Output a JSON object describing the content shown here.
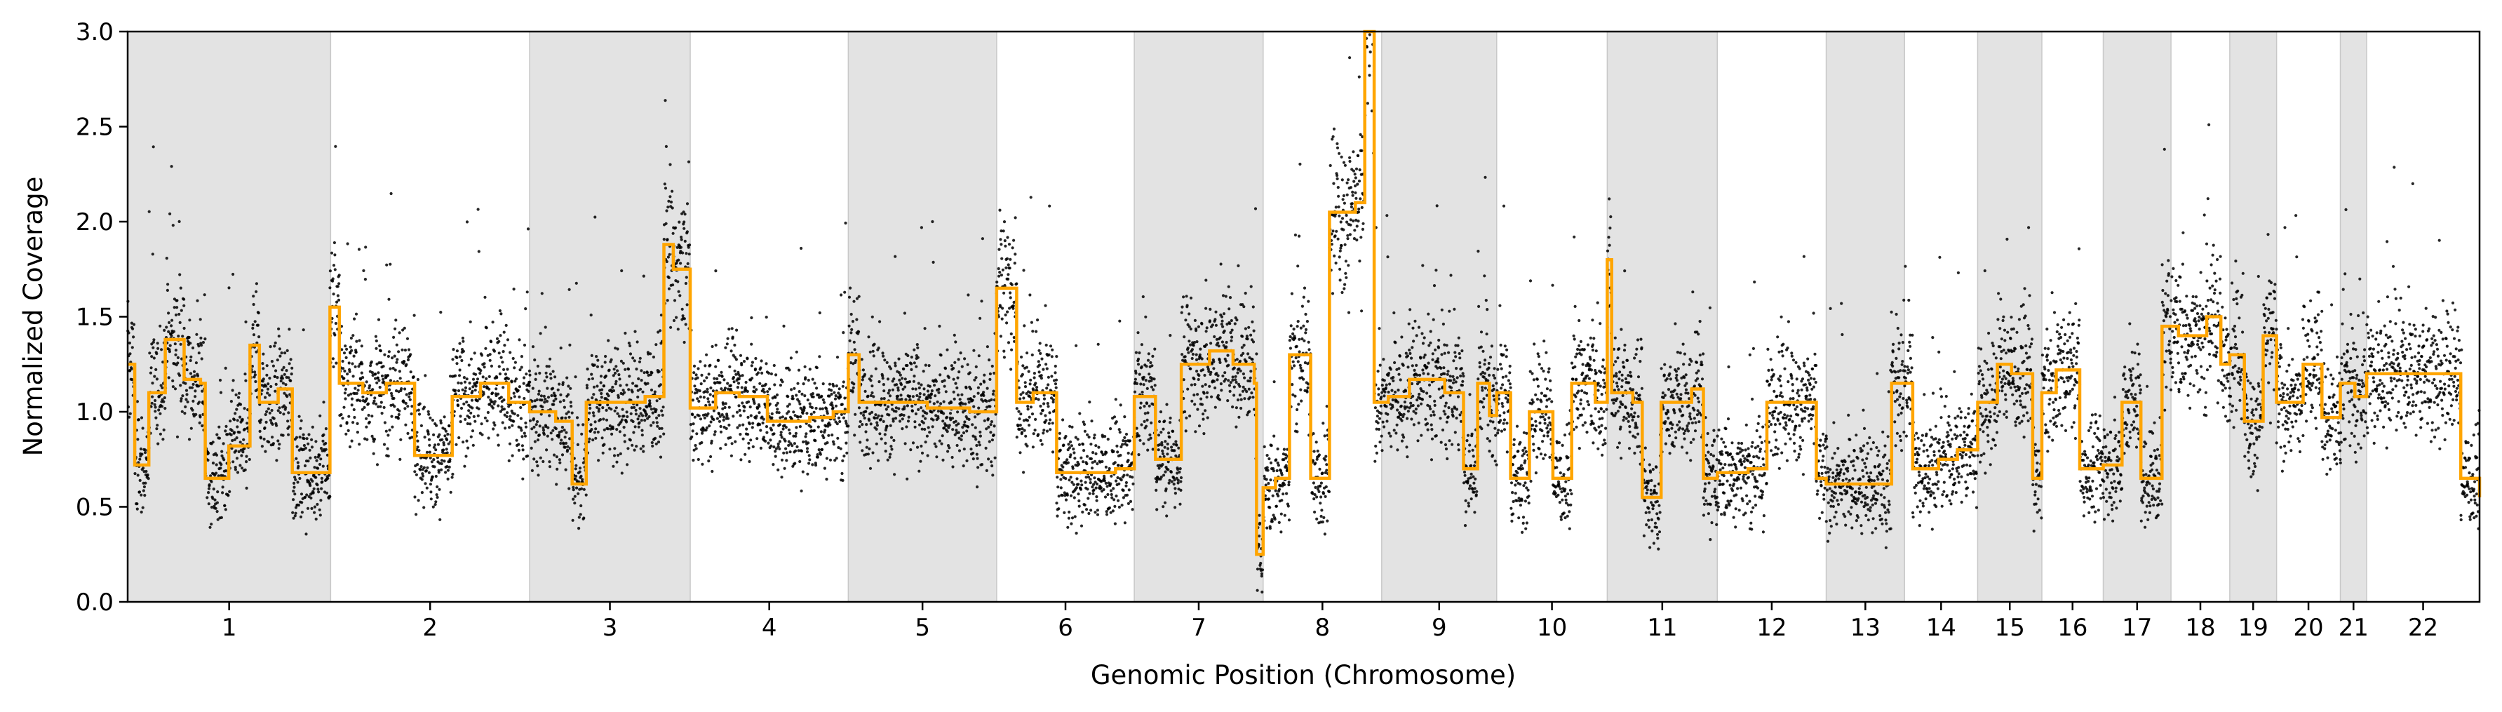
{
  "chart_data": {
    "type": "scatter",
    "title": "",
    "xlabel": "Genomic Position (Chromosome)",
    "ylabel": "Normalized Coverage",
    "ylim": [
      0,
      3.0
    ],
    "yticks": [
      "0.0",
      "0.5",
      "1.0",
      "1.5",
      "2.0",
      "2.5",
      "3.0"
    ],
    "grid": false,
    "legend": "none",
    "colors": {
      "points": "#000000",
      "segments": "#ffa500",
      "shade": "#e3e3e3",
      "shade_edge": "#c8c8c8"
    },
    "chromosomes": [
      {
        "label": "1",
        "start": 0.0,
        "end": 0.0863
      },
      {
        "label": "2",
        "start": 0.0863,
        "end": 0.1709
      },
      {
        "label": "3",
        "start": 0.1709,
        "end": 0.2392
      },
      {
        "label": "4",
        "start": 0.2392,
        "end": 0.3064
      },
      {
        "label": "5",
        "start": 0.3064,
        "end": 0.3695
      },
      {
        "label": "6",
        "start": 0.3695,
        "end": 0.428
      },
      {
        "label": "7",
        "start": 0.428,
        "end": 0.4828
      },
      {
        "label": "8",
        "start": 0.4828,
        "end": 0.5332
      },
      {
        "label": "9",
        "start": 0.5332,
        "end": 0.5821
      },
      {
        "label": "10",
        "start": 0.5821,
        "end": 0.6291
      },
      {
        "label": "11",
        "start": 0.6291,
        "end": 0.6759
      },
      {
        "label": "12",
        "start": 0.6759,
        "end": 0.7222
      },
      {
        "label": "13",
        "start": 0.7222,
        "end": 0.7555
      },
      {
        "label": "14",
        "start": 0.7555,
        "end": 0.7866
      },
      {
        "label": "15",
        "start": 0.7866,
        "end": 0.8139
      },
      {
        "label": "16",
        "start": 0.8139,
        "end": 0.84
      },
      {
        "label": "17",
        "start": 0.84,
        "end": 0.8688
      },
      {
        "label": "18",
        "start": 0.8688,
        "end": 0.8938
      },
      {
        "label": "19",
        "start": 0.8938,
        "end": 0.9137
      },
      {
        "label": "20",
        "start": 0.9137,
        "end": 0.9408
      },
      {
        "label": "21",
        "start": 0.9408,
        "end": 0.952
      },
      {
        "label": "22",
        "start": 0.952,
        "end": 1.0
      }
    ],
    "segments": [
      [
        0.0,
        1.25
      ],
      [
        0.003,
        0.72
      ],
      [
        0.009,
        1.1
      ],
      [
        0.016,
        1.38
      ],
      [
        0.024,
        1.17
      ],
      [
        0.031,
        1.15
      ],
      [
        0.033,
        0.65
      ],
      [
        0.043,
        0.82
      ],
      [
        0.052,
        1.35
      ],
      [
        0.056,
        1.05
      ],
      [
        0.064,
        1.12
      ],
      [
        0.07,
        0.68
      ],
      [
        0.086,
        1.55
      ],
      [
        0.09,
        1.15
      ],
      [
        0.1,
        1.1
      ],
      [
        0.11,
        1.15
      ],
      [
        0.122,
        0.77
      ],
      [
        0.138,
        1.08
      ],
      [
        0.15,
        1.15
      ],
      [
        0.162,
        1.05
      ],
      [
        0.1709,
        1.0
      ],
      [
        0.182,
        0.95
      ],
      [
        0.189,
        0.62
      ],
      [
        0.195,
        1.05
      ],
      [
        0.212,
        1.05
      ],
      [
        0.22,
        1.08
      ],
      [
        0.228,
        1.88
      ],
      [
        0.232,
        1.75
      ],
      [
        0.2392,
        1.02
      ],
      [
        0.25,
        1.1
      ],
      [
        0.26,
        1.08
      ],
      [
        0.272,
        0.95
      ],
      [
        0.29,
        0.97
      ],
      [
        0.3,
        1.0
      ],
      [
        0.3064,
        1.3
      ],
      [
        0.311,
        1.05
      ],
      [
        0.34,
        1.02
      ],
      [
        0.358,
        1.0
      ],
      [
        0.3695,
        1.65
      ],
      [
        0.378,
        1.05
      ],
      [
        0.385,
        1.1
      ],
      [
        0.395,
        0.68
      ],
      [
        0.42,
        0.7
      ],
      [
        0.428,
        1.08
      ],
      [
        0.437,
        0.75
      ],
      [
        0.448,
        1.25
      ],
      [
        0.46,
        1.32
      ],
      [
        0.47,
        1.25
      ],
      [
        0.479,
        1.15
      ],
      [
        0.48,
        0.25
      ],
      [
        0.4828,
        0.6
      ],
      [
        0.488,
        0.65
      ],
      [
        0.494,
        1.3
      ],
      [
        0.503,
        0.65
      ],
      [
        0.511,
        2.05
      ],
      [
        0.522,
        2.1
      ],
      [
        0.526,
        3.0
      ],
      [
        0.53,
        1.05
      ],
      [
        0.536,
        1.08
      ],
      [
        0.545,
        1.17
      ],
      [
        0.56,
        1.1
      ],
      [
        0.568,
        0.7
      ],
      [
        0.574,
        1.15
      ],
      [
        0.579,
        0.98
      ],
      [
        0.5821,
        1.1
      ],
      [
        0.588,
        0.65
      ],
      [
        0.596,
        1.0
      ],
      [
        0.606,
        0.65
      ],
      [
        0.614,
        1.15
      ],
      [
        0.624,
        1.05
      ],
      [
        0.6291,
        1.8
      ],
      [
        0.631,
        1.1
      ],
      [
        0.64,
        1.05
      ],
      [
        0.644,
        0.55
      ],
      [
        0.652,
        1.05
      ],
      [
        0.665,
        1.12
      ],
      [
        0.67,
        0.65
      ],
      [
        0.6759,
        0.68
      ],
      [
        0.689,
        0.7
      ],
      [
        0.697,
        1.05
      ],
      [
        0.71,
        1.05
      ],
      [
        0.718,
        0.65
      ],
      [
        0.7222,
        0.62
      ],
      [
        0.738,
        0.62
      ],
      [
        0.75,
        1.15
      ],
      [
        0.759,
        0.7
      ],
      [
        0.77,
        0.75
      ],
      [
        0.778,
        0.8
      ],
      [
        0.7866,
        1.05
      ],
      [
        0.795,
        1.25
      ],
      [
        0.801,
        1.2
      ],
      [
        0.81,
        0.65
      ],
      [
        0.8139,
        1.1
      ],
      [
        0.82,
        1.22
      ],
      [
        0.83,
        0.7
      ],
      [
        0.84,
        0.72
      ],
      [
        0.848,
        1.05
      ],
      [
        0.856,
        0.65
      ],
      [
        0.865,
        1.45
      ],
      [
        0.872,
        1.4
      ],
      [
        0.884,
        1.5
      ],
      [
        0.89,
        1.25
      ],
      [
        0.8938,
        1.3
      ],
      [
        0.9,
        0.95
      ],
      [
        0.908,
        1.4
      ],
      [
        0.9137,
        1.05
      ],
      [
        0.925,
        1.25
      ],
      [
        0.933,
        0.97
      ],
      [
        0.9408,
        1.15
      ],
      [
        0.947,
        1.08
      ],
      [
        0.952,
        1.2
      ],
      [
        0.992,
        0.65
      ],
      [
        1.0,
        0.55
      ]
    ]
  }
}
